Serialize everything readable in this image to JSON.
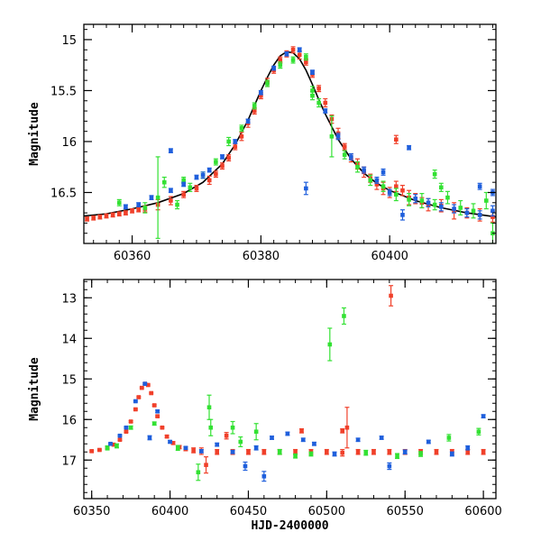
{
  "colors": {
    "blue": "#1f5fdc",
    "green": "#33e133",
    "red": "#f0402a",
    "model": "#000000",
    "axis": "#000000"
  },
  "chart_data": [
    {
      "type": "scatter",
      "title": "",
      "xlabel": "",
      "ylabel": "Magnitude",
      "xlim": [
        60352.5,
        60416.5
      ],
      "ylim": [
        17.0,
        14.85
      ],
      "y_inverted": true,
      "x_ticks": [
        60360,
        60380,
        60400
      ],
      "y_ticks": [
        15,
        15.5,
        16,
        16.5
      ],
      "model_curve": {
        "x": [
          60352.5,
          60356,
          60360,
          60364,
          60368,
          60371,
          60374,
          60376,
          60378,
          60380,
          60381,
          60382,
          60383,
          60384,
          60385,
          60386,
          60387,
          60388,
          60389,
          60390,
          60392,
          60394,
          60396,
          60398,
          60400,
          60404,
          60408,
          60412,
          60416.5
        ],
        "y": [
          16.73,
          16.71,
          16.66,
          16.6,
          16.51,
          16.4,
          16.22,
          16.03,
          15.79,
          15.5,
          15.37,
          15.25,
          15.16,
          15.12,
          15.13,
          15.19,
          15.3,
          15.44,
          15.59,
          15.73,
          15.98,
          16.17,
          16.31,
          16.41,
          16.48,
          16.58,
          16.65,
          16.7,
          16.74
        ]
      },
      "series": [
        {
          "color_key": "red",
          "x": [
            60353,
            60354,
            60355,
            60356,
            60357,
            60358,
            60359,
            60360,
            60361,
            60362,
            60364,
            60366,
            60368,
            60370,
            60372,
            60373,
            60374,
            60375,
            60376,
            60377,
            60378,
            60379,
            60380,
            60381,
            60382,
            60383,
            60384,
            60385,
            60386,
            60387,
            60388,
            60389,
            60390,
            60391,
            60392,
            60393,
            60394,
            60395,
            60396,
            60397,
            60398,
            60399,
            60400,
            60401,
            60402,
            60403,
            60404,
            60405,
            60406,
            60408,
            60410,
            60412,
            60414,
            60416
          ],
          "y": [
            16.76,
            16.75,
            16.74,
            16.73,
            16.72,
            16.71,
            16.7,
            16.68,
            16.67,
            16.66,
            16.62,
            16.58,
            16.52,
            16.46,
            16.38,
            16.32,
            16.24,
            16.16,
            16.05,
            15.95,
            15.82,
            15.7,
            15.55,
            15.42,
            15.3,
            15.2,
            15.14,
            15.1,
            15.15,
            15.22,
            15.34,
            15.48,
            15.62,
            15.78,
            15.92,
            16.05,
            16.16,
            16.22,
            16.3,
            16.36,
            16.42,
            16.46,
            16.5,
            16.44,
            16.48,
            16.55,
            16.56,
            16.6,
            16.62,
            16.63,
            16.68,
            16.7,
            16.72,
            16.74
          ],
          "err": [
            0.02,
            0.02,
            0.02,
            0.02,
            0.02,
            0.02,
            0.02,
            0.02,
            0.02,
            0.03,
            0.05,
            0.04,
            0.03,
            0.03,
            0.04,
            0.03,
            0.03,
            0.03,
            0.03,
            0.04,
            0.04,
            0.03,
            0.03,
            0.04,
            0.03,
            0.03,
            0.03,
            0.03,
            0.04,
            0.03,
            0.03,
            0.03,
            0.04,
            0.04,
            0.05,
            0.03,
            0.04,
            0.05,
            0.05,
            0.04,
            0.05,
            0.06,
            0.05,
            0.05,
            0.05,
            0.07,
            0.05,
            0.05,
            0.06,
            0.06,
            0.08,
            0.05,
            0.06,
            0.05
          ]
        },
        {
          "color_key": "red",
          "x": [
            60401
          ],
          "y": [
            15.98
          ],
          "err": [
            0.04
          ]
        },
        {
          "color_key": "green",
          "x": [
            60358,
            60362,
            60364,
            60365,
            60367,
            60369,
            60371,
            60373,
            60375,
            60377,
            60379,
            60381,
            60383,
            60385,
            60387,
            60388,
            60389,
            60391,
            60393,
            60395,
            60397,
            60399,
            60401,
            60403,
            60405,
            60407,
            60409,
            60411,
            60413,
            60415,
            60416
          ],
          "y": [
            16.6,
            16.65,
            16.55,
            16.4,
            16.62,
            16.45,
            16.33,
            16.2,
            16.0,
            15.87,
            15.65,
            15.43,
            15.25,
            15.2,
            15.17,
            15.5,
            15.62,
            15.95,
            16.13,
            16.25,
            16.38,
            16.44,
            16.52,
            16.57,
            16.58,
            16.62,
            16.55,
            16.65,
            16.68,
            16.58,
            16.9
          ],
          "err": [
            0.03,
            0.05,
            0.4,
            0.05,
            0.04,
            0.04,
            0.03,
            0.03,
            0.04,
            0.03,
            0.03,
            0.03,
            0.03,
            0.03,
            0.03,
            0.04,
            0.04,
            0.2,
            0.04,
            0.05,
            0.05,
            0.05,
            0.06,
            0.06,
            0.07,
            0.05,
            0.06,
            0.07,
            0.07,
            0.08,
            0.1
          ]
        },
        {
          "color_key": "green",
          "x": [
            60368,
            60388,
            60407,
            60408
          ],
          "y": [
            16.38,
            15.55,
            16.32,
            16.45
          ],
          "err": [
            0.03,
            0.04,
            0.04,
            0.04
          ]
        },
        {
          "color_key": "blue",
          "x": [
            60359,
            60361,
            60363,
            60366,
            60368,
            60370,
            60372,
            60374,
            60376,
            60378,
            60380,
            60382,
            60384,
            60386,
            60388,
            60390,
            60392,
            60394,
            60396,
            60398,
            60400,
            60402,
            60404,
            60406,
            60408,
            60410,
            60412,
            60414,
            60416
          ],
          "y": [
            16.64,
            16.62,
            16.55,
            16.48,
            16.42,
            16.35,
            16.28,
            16.15,
            16.0,
            15.8,
            15.52,
            15.28,
            15.14,
            15.1,
            15.32,
            15.7,
            15.95,
            16.15,
            16.28,
            16.38,
            16.5,
            16.72,
            16.56,
            16.6,
            16.64,
            16.66,
            16.7,
            16.72,
            16.68
          ],
          "err": [
            0.02,
            0.02,
            0.02,
            0.02,
            0.02,
            0.02,
            0.02,
            0.02,
            0.02,
            0.02,
            0.02,
            0.02,
            0.02,
            0.02,
            0.02,
            0.02,
            0.03,
            0.03,
            0.03,
            0.03,
            0.03,
            0.05,
            0.04,
            0.04,
            0.04,
            0.04,
            0.04,
            0.04,
            0.05
          ]
        },
        {
          "color_key": "blue",
          "x": [
            60366,
            60371,
            60387,
            60399,
            60403,
            60414,
            60416
          ],
          "y": [
            16.09,
            16.33,
            16.46,
            16.3,
            16.06,
            16.44,
            16.5
          ],
          "err": [
            0.02,
            0.03,
            0.06,
            0.03,
            0.02,
            0.03,
            0.03
          ]
        }
      ]
    },
    {
      "type": "scatter",
      "title": "",
      "xlabel": "HJD-2400000",
      "ylabel": "Magnitude",
      "xlim": [
        60345,
        60608
      ],
      "ylim": [
        17.95,
        12.55
      ],
      "y_inverted": true,
      "x_ticks": [
        60350,
        60400,
        60450,
        60500,
        60550,
        60600
      ],
      "y_ticks": [
        13,
        14,
        15,
        16,
        17
      ],
      "series": [
        {
          "color_key": "red",
          "x": [
            60350,
            60355,
            60360,
            60364,
            60368,
            60372,
            60375,
            60378,
            60380,
            60382,
            60384,
            60386,
            60388,
            60390,
            60392,
            60395,
            60398,
            60402,
            60406,
            60410,
            60415,
            60420,
            60430,
            60440,
            60450,
            60460,
            60470,
            60480,
            60490,
            60500,
            60510,
            60520,
            60530,
            60540,
            60550,
            60560,
            60570,
            60580,
            60590,
            60600
          ],
          "y": [
            16.78,
            16.75,
            16.7,
            16.62,
            16.5,
            16.3,
            16.05,
            15.75,
            15.45,
            15.22,
            15.12,
            15.15,
            15.35,
            15.65,
            15.92,
            16.2,
            16.42,
            16.58,
            16.68,
            16.72,
            16.76,
            16.78,
            16.8,
            16.8,
            16.8,
            16.8,
            16.8,
            16.8,
            16.8,
            16.8,
            16.82,
            16.8,
            16.8,
            16.8,
            16.8,
            16.8,
            16.8,
            16.8,
            16.8,
            16.8
          ],
          "err": [
            0.02,
            0.02,
            0.02,
            0.02,
            0.02,
            0.02,
            0.02,
            0.02,
            0.02,
            0.02,
            0.02,
            0.02,
            0.02,
            0.02,
            0.02,
            0.02,
            0.03,
            0.03,
            0.04,
            0.05,
            0.06,
            0.08,
            0.06,
            0.06,
            0.06,
            0.06,
            0.06,
            0.06,
            0.06,
            0.06,
            0.08,
            0.06,
            0.06,
            0.06,
            0.06,
            0.06,
            0.06,
            0.06,
            0.06,
            0.06
          ]
        },
        {
          "color_key": "red",
          "x": [
            60423,
            60436,
            60484,
            60510,
            60513,
            60541
          ],
          "y": [
            17.12,
            16.4,
            16.28,
            16.28,
            16.2,
            12.95
          ],
          "err": [
            0.2,
            0.08,
            0.05,
            0.05,
            0.5,
            0.25
          ]
        },
        {
          "color_key": "green",
          "x": [
            60360,
            60366,
            60375,
            60390,
            60405,
            60418,
            60425,
            60426,
            60440,
            60445,
            60455,
            60470,
            60480,
            60490,
            60502,
            60511,
            60525,
            60545,
            60560,
            60578,
            60597
          ],
          "y": [
            16.7,
            16.65,
            16.2,
            16.1,
            16.7,
            17.3,
            15.7,
            16.2,
            16.2,
            16.55,
            16.3,
            16.8,
            16.9,
            16.85,
            14.15,
            13.45,
            16.82,
            16.9,
            16.85,
            16.45,
            16.3
          ],
          "err": [
            0.05,
            0.05,
            0.04,
            0.04,
            0.06,
            0.2,
            0.3,
            0.2,
            0.15,
            0.12,
            0.2,
            0.06,
            0.05,
            0.05,
            0.4,
            0.2,
            0.06,
            0.06,
            0.06,
            0.08,
            0.08
          ]
        },
        {
          "color_key": "blue",
          "x": [
            60362,
            60368,
            60372,
            60378,
            60384,
            60387,
            60392,
            60400,
            60410,
            60420,
            60430,
            60440,
            60448,
            60455,
            60460,
            60465,
            60475,
            60485,
            60492,
            60505,
            60520,
            60535,
            60540,
            60550,
            60565,
            60580,
            60590,
            60600
          ],
          "y": [
            16.6,
            16.4,
            16.2,
            15.55,
            15.12,
            16.45,
            15.8,
            16.55,
            16.7,
            16.78,
            16.62,
            16.8,
            17.15,
            16.7,
            17.4,
            16.45,
            16.35,
            16.5,
            16.6,
            16.85,
            16.5,
            16.45,
            17.15,
            16.8,
            16.55,
            16.85,
            16.7,
            15.92
          ],
          "err": [
            0.02,
            0.02,
            0.02,
            0.02,
            0.02,
            0.05,
            0.03,
            0.03,
            0.03,
            0.04,
            0.04,
            0.04,
            0.1,
            0.05,
            0.12,
            0.04,
            0.04,
            0.04,
            0.04,
            0.05,
            0.04,
            0.04,
            0.08,
            0.05,
            0.04,
            0.05,
            0.05,
            0.04
          ]
        }
      ]
    }
  ]
}
